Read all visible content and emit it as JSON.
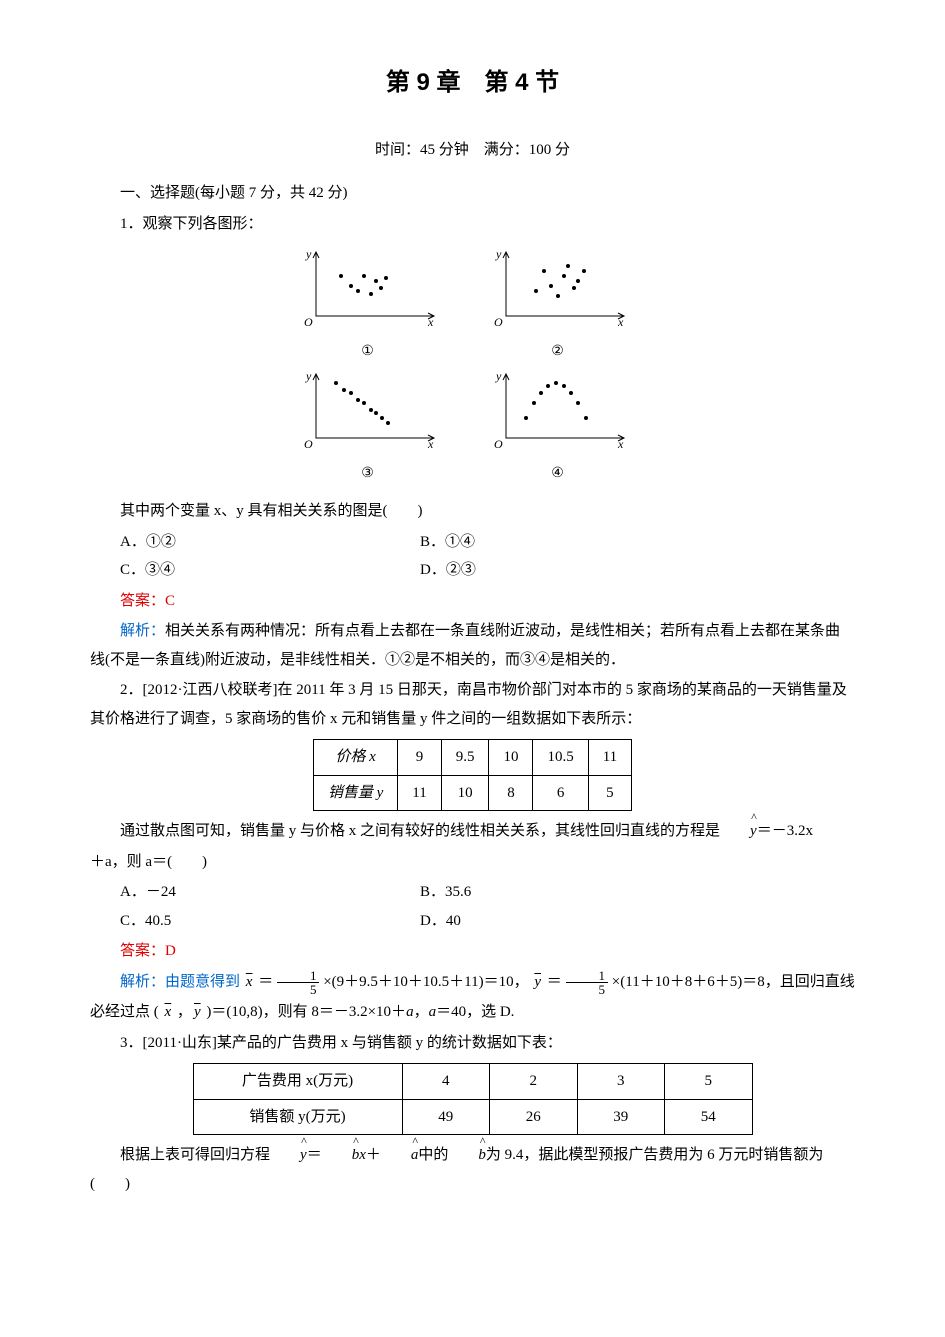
{
  "title": "第 9 章　第 4 节",
  "subtitle": "时间：45 分钟　满分：100 分",
  "section1": "一、选择题(每小题 7 分，共 42 分)",
  "q1": {
    "stem": "1．观察下列各图形：",
    "post": "其中两个变量 x、y 具有相关关系的图是(　　)",
    "A": "A．①②",
    "B": "B．①④",
    "C": "C．③④",
    "D": "D．②③",
    "answer": "答案：C",
    "explain": "解析：相关关系有两种情况：所有点看上去都在一条直线附近波动，是线性相关；若所有点看上去都在某条曲线(不是一条直线)附近波动，是非线性相关．①②是不相关的，而③④是相关的．",
    "plots": {
      "p1": {
        "label": "①",
        "points": [
          [
            25,
            40
          ],
          [
            35,
            30
          ],
          [
            42,
            25
          ],
          [
            48,
            40
          ],
          [
            55,
            22
          ],
          [
            60,
            35
          ],
          [
            65,
            28
          ],
          [
            70,
            38
          ]
        ]
      },
      "p2": {
        "label": "②",
        "points": [
          [
            30,
            25
          ],
          [
            38,
            45
          ],
          [
            45,
            30
          ],
          [
            52,
            20
          ],
          [
            58,
            40
          ],
          [
            62,
            50
          ],
          [
            68,
            28
          ],
          [
            72,
            35
          ],
          [
            78,
            45
          ]
        ]
      },
      "p3": {
        "label": "③",
        "points": [
          [
            20,
            55
          ],
          [
            28,
            48
          ],
          [
            35,
            45
          ],
          [
            42,
            38
          ],
          [
            48,
            35
          ],
          [
            55,
            28
          ],
          [
            60,
            25
          ],
          [
            66,
            20
          ],
          [
            72,
            15
          ]
        ]
      },
      "p4": {
        "label": "④",
        "points": [
          [
            20,
            20
          ],
          [
            28,
            35
          ],
          [
            35,
            45
          ],
          [
            42,
            52
          ],
          [
            50,
            55
          ],
          [
            58,
            52
          ],
          [
            65,
            45
          ],
          [
            72,
            35
          ],
          [
            80,
            20
          ]
        ]
      }
    }
  },
  "q2": {
    "stem": "2．[2012·江西八校联考]在 2011 年 3 月 15 日那天，南昌市物价部门对本市的 5 家商场的某商品的一天销售量及其价格进行了调查，5 家商场的售价 x 元和销售量 y 件之间的一组数据如下表所示：",
    "table": {
      "headers": [
        "价格 x",
        "9",
        "9.5",
        "10",
        "10.5",
        "11"
      ],
      "row2": [
        "销售量 y",
        "11",
        "10",
        "8",
        "6",
        "5"
      ]
    },
    "post1": "通过散点图可知，销售量 y 与价格 x 之间有较好的线性相关关系，其线性回归直线的方程是",
    "post1b": "＝－3.2x",
    "post2": "＋a，则 a＝(　　)",
    "A": "A．－24",
    "B": "B．35.6",
    "C": "C．40.5",
    "D": "D．40",
    "answer": "答案：D",
    "explain_pre": "解析：由题意得到",
    "explain_mid1": "×(9＋9.5＋10＋10.5＋11)＝10，",
    "explain_mid2": "×(11＋10＋8＋6＋5)＝8，且回归直线",
    "explain_post": "必经过点 (　x　,　y　)＝(10,8)，则有 8＝－3.2×10＋a，a＝40，选 D."
  },
  "q3": {
    "stem": "3．[2011·山东]某产品的广告费用 x 与销售额 y 的统计数据如下表：",
    "table": {
      "headers": [
        "广告费用 x(万元)",
        "4",
        "2",
        "3",
        "5"
      ],
      "row2": [
        "销售额 y(万元)",
        "49",
        "26",
        "39",
        "54"
      ]
    },
    "post": "根据上表可得回归方程 y＝bx＋a 中的 b 为 9.4，据此模型预报广告费用为 6 万元时销售额为(　　)"
  },
  "svg_style": {
    "axis_color": "#000",
    "point_color": "#000",
    "width": 140,
    "height": 90
  }
}
